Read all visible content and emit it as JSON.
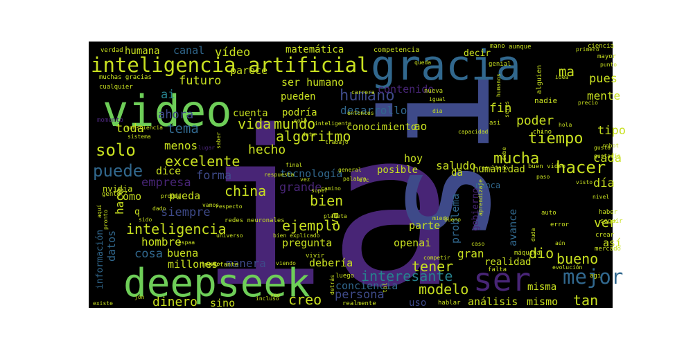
{
  "canvas": {
    "background": "#ffffff",
    "panel_color": "#000000"
  },
  "palette": {
    "purple": "#482576",
    "indigo": "#3e4a89",
    "blue": "#31688e",
    "teal": "#26828e",
    "green": "#35b779",
    "lime": "#6ece58",
    "yellow": "#c8e020",
    "dark": "#440154"
  },
  "words": [
    {
      "text": "ia",
      "color": "#482576"
    },
    {
      "text": "si",
      "color": "#3e4a89"
    },
    {
      "text": "gracia",
      "color": "#31688e"
    },
    {
      "text": "video",
      "color": "#6ece58"
    },
    {
      "text": "deepseek",
      "color": "#6ece58"
    },
    {
      "text": "ser",
      "color": "#482576"
    },
    {
      "text": "inteligencia artificial",
      "color": "#c8e020"
    },
    {
      "text": "mejor",
      "color": "#31688e"
    },
    {
      "text": "solo",
      "color": "#c8e020"
    },
    {
      "text": "puede",
      "color": "#31688e"
    },
    {
      "text": "hacer",
      "color": "#c8e020"
    },
    {
      "text": "tiempo",
      "color": "#c8e020"
    },
    {
      "text": "mucha",
      "color": "#c8e020"
    },
    {
      "text": "humano",
      "color": "#3e4a89"
    },
    {
      "text": "vida",
      "color": "#c8e020"
    },
    {
      "text": "mundo",
      "color": "#c8e020"
    },
    {
      "text": "algoritmo",
      "color": "#c8e020"
    },
    {
      "text": "excelente",
      "color": "#c8e020"
    },
    {
      "text": "inteligencia",
      "color": "#c8e020"
    },
    {
      "text": "china",
      "color": "#c8e020"
    },
    {
      "text": "ejemplo",
      "color": "#c8e020"
    },
    {
      "text": "bien",
      "color": "#c8e020"
    },
    {
      "text": "modelo",
      "color": "#c8e020"
    },
    {
      "text": "interesante",
      "color": "#26828e"
    },
    {
      "text": "dinero",
      "color": "#c8e020"
    },
    {
      "text": "creo",
      "color": "#c8e020"
    },
    {
      "text": "tener",
      "color": "#c8e020"
    },
    {
      "text": "bueno",
      "color": "#c8e020"
    },
    {
      "text": "dio",
      "color": "#c8e020"
    },
    {
      "text": "tan",
      "color": "#c8e020"
    },
    {
      "text": "ver",
      "color": "#c8e020"
    },
    {
      "text": "día",
      "color": "#c8e020"
    },
    {
      "text": "cada",
      "color": "#c8e020"
    },
    {
      "text": "tipo",
      "color": "#c8e020"
    },
    {
      "text": "pues",
      "color": "#c8e020"
    },
    {
      "text": "mente",
      "color": "#c8e020"
    },
    {
      "text": "poder",
      "color": "#c8e020"
    },
    {
      "text": "fin",
      "color": "#c8e020"
    },
    {
      "text": "ma",
      "color": "#c8e020"
    },
    {
      "text": "futuro",
      "color": "#c8e020"
    },
    {
      "text": "ai",
      "color": "#26828e"
    },
    {
      "text": "tema",
      "color": "#31688e"
    },
    {
      "text": "ahora",
      "color": "#3e4a89"
    },
    {
      "text": "toda",
      "color": "#c8e020"
    },
    {
      "text": "menos",
      "color": "#c8e020"
    },
    {
      "text": "dice",
      "color": "#c8e020"
    },
    {
      "text": "forma",
      "color": "#3e4a89"
    },
    {
      "text": "empresa",
      "color": "#482576"
    },
    {
      "text": "cómo",
      "color": "#c8e020"
    },
    {
      "text": "siempre",
      "color": "#3e4a89"
    },
    {
      "text": "pueda",
      "color": "#c8e020"
    },
    {
      "text": "hombre",
      "color": "#c8e020"
    },
    {
      "text": "cosa",
      "color": "#31688e"
    },
    {
      "text": "buena",
      "color": "#c8e020"
    },
    {
      "text": "millones",
      "color": "#c8e020"
    },
    {
      "text": "manera",
      "color": "#3e4a89"
    },
    {
      "text": "debería",
      "color": "#c8e020"
    },
    {
      "text": "persona",
      "color": "#3e4a89"
    },
    {
      "text": "conciencia",
      "color": "#31688e"
    },
    {
      "text": "análisis",
      "color": "#c8e020"
    },
    {
      "text": "mismo",
      "color": "#c8e020"
    },
    {
      "text": "misma",
      "color": "#c8e020"
    },
    {
      "text": "realidad",
      "color": "#c8e020"
    },
    {
      "text": "gran",
      "color": "#c8e020"
    },
    {
      "text": "avance",
      "color": "#31688e"
    },
    {
      "text": "problema",
      "color": "#31688e"
    },
    {
      "text": "gobierno",
      "color": "#482576"
    },
    {
      "text": "parte",
      "color": "#c8e020"
    },
    {
      "text": "openai",
      "color": "#c8e020"
    },
    {
      "text": "pregunta",
      "color": "#c8e020"
    },
    {
      "text": "grande",
      "color": "#482576"
    },
    {
      "text": "tecnología",
      "color": "#31688e"
    },
    {
      "text": "hoy",
      "color": "#c8e020"
    },
    {
      "text": "posible",
      "color": "#c8e020"
    },
    {
      "text": "saludo",
      "color": "#c8e020"
    },
    {
      "text": "humanidad",
      "color": "#c8e020"
    },
    {
      "text": "da",
      "color": "#c8e020"
    },
    {
      "text": "nunca",
      "color": "#31688e"
    },
    {
      "text": "hecho",
      "color": "#c8e020"
    },
    {
      "text": "conocimiento",
      "color": "#c8e020"
    },
    {
      "text": "ao",
      "color": "#c8e020"
    },
    {
      "text": "cuenta",
      "color": "#c8e020"
    },
    {
      "text": "podría",
      "color": "#c8e020"
    },
    {
      "text": "pueden",
      "color": "#c8e020"
    },
    {
      "text": "desarrollo",
      "color": "#31688e"
    },
    {
      "text": "contenido",
      "color": "#482576"
    },
    {
      "text": "ser humano",
      "color": "#c8e020"
    },
    {
      "text": "parece",
      "color": "#c8e020"
    },
    {
      "text": "vídeo",
      "color": "#c8e020"
    },
    {
      "text": "canal",
      "color": "#31688e"
    },
    {
      "text": "humana",
      "color": "#c8e020"
    },
    {
      "text": "matemática",
      "color": "#c8e020"
    },
    {
      "text": "decir",
      "color": "#c8e020"
    },
    {
      "text": "hace",
      "color": "#c8e020"
    },
    {
      "text": "va",
      "color": "#c8e020"
    },
    {
      "text": "así",
      "color": "#c8e020"
    },
    {
      "text": "datos",
      "color": "#31688e"
    },
    {
      "text": "información",
      "color": "#31688e"
    },
    {
      "text": "sino",
      "color": "#c8e020"
    },
    {
      "text": "uso",
      "color": "#3e4a89"
    },
    {
      "text": "nvidia",
      "color": "#c8e020"
    },
    {
      "text": "q",
      "color": "#c8e020"
    },
    {
      "text": "competencia",
      "color": "#c8e020"
    },
    {
      "text": "verdad",
      "color": "#c8e020"
    },
    {
      "text": "muchas gracias",
      "color": "#c8e020"
    },
    {
      "text": "cualquier",
      "color": "#c8e020"
    },
    {
      "text": "momento",
      "color": "#482576"
    },
    {
      "text": "consciencia",
      "color": "#c8e020"
    },
    {
      "text": "sistema",
      "color": "#c8e020"
    },
    {
      "text": "lugar",
      "color": "#482576"
    },
    {
      "text": "gente",
      "color": "#c8e020"
    },
    {
      "text": "propia",
      "color": "#c8e020"
    },
    {
      "text": "vamos",
      "color": "#c8e020"
    },
    {
      "text": "pronto",
      "color": "#c8e020"
    },
    {
      "text": "sido",
      "color": "#c8e020"
    },
    {
      "text": "aquí",
      "color": "#c8e020"
    },
    {
      "text": "respecto",
      "color": "#c8e020"
    },
    {
      "text": "importante",
      "color": "#c8e020"
    },
    {
      "text": "redes neuronales",
      "color": "#c8e020"
    },
    {
      "text": "espaa",
      "color": "#c8e020"
    },
    {
      "text": "universo",
      "color": "#c8e020"
    },
    {
      "text": "seor",
      "color": "#c8e020"
    },
    {
      "text": "viendo",
      "color": "#c8e020"
    },
    {
      "text": "jon",
      "color": "#c8e020"
    },
    {
      "text": "existe",
      "color": "#c8e020"
    },
    {
      "text": "incluso",
      "color": "#c8e020"
    },
    {
      "text": "veo",
      "color": "#c8e020"
    },
    {
      "text": "realmente",
      "color": "#c8e020"
    },
    {
      "text": "hablar",
      "color": "#c8e020"
    },
    {
      "text": "detrás",
      "color": "#c8e020"
    },
    {
      "text": "luego",
      "color": "#c8e020"
    },
    {
      "text": "tal",
      "color": "#c8e020"
    },
    {
      "text": "falta",
      "color": "#c8e020"
    },
    {
      "text": "competir",
      "color": "#c8e020"
    },
    {
      "text": "vivir",
      "color": "#c8e020"
    },
    {
      "text": "bien explicado",
      "color": "#c8e020"
    },
    {
      "text": "planeta",
      "color": "#c8e020"
    },
    {
      "text": "miedo",
      "color": "#c8e020"
    },
    {
      "text": "bueno",
      "color": "#c8e020"
    },
    {
      "text": "aprendizaje",
      "color": "#c8e020"
    },
    {
      "text": "camino",
      "color": "#c8e020"
    },
    {
      "text": "etc",
      "color": "#c8e020"
    },
    {
      "text": "super",
      "color": "#c8e020"
    },
    {
      "text": "palabra",
      "color": "#c8e020"
    },
    {
      "text": "vez",
      "color": "#c8e020"
    },
    {
      "text": "respuesta",
      "color": "#c8e020"
    },
    {
      "text": "general",
      "color": "#c8e020"
    },
    {
      "text": "final",
      "color": "#c8e020"
    },
    {
      "text": "trabajo",
      "color": "#c8e020"
    },
    {
      "text": "data",
      "color": "#c8e020"
    },
    {
      "text": "solo",
      "color": "#c8e020"
    },
    {
      "text": "inteligente",
      "color": "#c8e020"
    },
    {
      "text": "entonces",
      "color": "#c8e020"
    },
    {
      "text": "carrera",
      "color": "#c8e020"
    },
    {
      "text": "nueva",
      "color": "#c8e020"
    },
    {
      "text": "igual",
      "color": "#c8e020"
    },
    {
      "text": "queda",
      "color": "#c8e020"
    },
    {
      "text": "genial",
      "color": "#c8e020"
    },
    {
      "text": "humanos",
      "color": "#c8e020"
    },
    {
      "text": "seres",
      "color": "#c8e020"
    },
    {
      "text": "mano",
      "color": "#c8e020"
    },
    {
      "text": "aunque",
      "color": "#c8e020"
    },
    {
      "text": "alguien",
      "color": "#c8e020"
    },
    {
      "text": "nadie",
      "color": "#c8e020"
    },
    {
      "text": "idea",
      "color": "#c8e020"
    },
    {
      "text": "ciencia",
      "color": "#c8e020"
    },
    {
      "text": "primero",
      "color": "#c8e020"
    },
    {
      "text": "mayor",
      "color": "#c8e020"
    },
    {
      "text": "punto",
      "color": "#c8e020"
    },
    {
      "text": "precio",
      "color": "#c8e020"
    },
    {
      "text": "dia",
      "color": "#c8e020"
    },
    {
      "text": "asi",
      "color": "#c8e020"
    },
    {
      "text": "chino",
      "color": "#c8e020"
    },
    {
      "text": "hola",
      "color": "#c8e020"
    },
    {
      "text": "capacidad",
      "color": "#c8e020"
    },
    {
      "text": "gusta",
      "color": "#c8e020"
    },
    {
      "text": "gustaría",
      "color": "#c8e020"
    },
    {
      "text": "robot",
      "color": "#c8e020"
    },
    {
      "text": "buen video",
      "color": "#c8e020"
    },
    {
      "text": "paso",
      "color": "#c8e020"
    },
    {
      "text": "resultado",
      "color": "#c8e020"
    },
    {
      "text": "debe",
      "color": "#c8e020"
    },
    {
      "text": "visto",
      "color": "#c8e020"
    },
    {
      "text": "nivel",
      "color": "#c8e020"
    },
    {
      "text": "haber",
      "color": "#c8e020"
    },
    {
      "text": "seguir",
      "color": "#c8e020"
    },
    {
      "text": "auto",
      "color": "#c8e020"
    },
    {
      "text": "error",
      "color": "#c8e020"
    },
    {
      "text": "crear",
      "color": "#c8e020"
    },
    {
      "text": "duda",
      "color": "#c8e020"
    },
    {
      "text": "caso",
      "color": "#c8e020"
    },
    {
      "text": "aún",
      "color": "#c8e020"
    },
    {
      "text": "mercado",
      "color": "#c8e020"
    },
    {
      "text": "máquina",
      "color": "#c8e020"
    },
    {
      "text": "evolución",
      "color": "#c8e020"
    },
    {
      "text": "agi",
      "color": "#c8e020"
    },
    {
      "text": "dado",
      "color": "#c8e020"
    },
    {
      "text": "saber",
      "color": "#c8e020"
    }
  ]
}
